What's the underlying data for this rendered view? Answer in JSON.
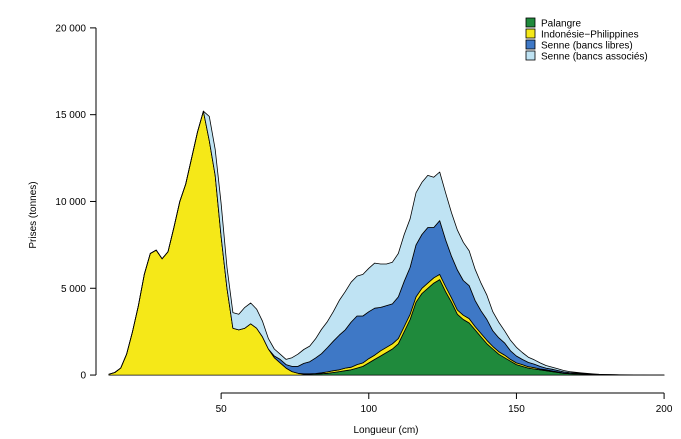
{
  "chart_data": {
    "type": "area",
    "stacked": true,
    "xlabel": "Longueur (cm)",
    "ylabel": "Prises (tonnes)",
    "xlim": [
      10,
      202
    ],
    "ylim": [
      -400,
      20800
    ],
    "x_ticks": [
      50,
      100,
      150,
      200
    ],
    "y_ticks": [
      0,
      5000,
      10000,
      15000,
      20000
    ],
    "y_tick_labels": [
      "0",
      "5 000",
      "10 000",
      "15 000",
      "20 000"
    ],
    "grid": false,
    "legend_position": "top-right",
    "x": [
      12,
      14,
      16,
      18,
      20,
      22,
      24,
      26,
      28,
      30,
      32,
      34,
      36,
      38,
      40,
      42,
      44,
      46,
      48,
      50,
      52,
      54,
      56,
      58,
      60,
      62,
      64,
      66,
      68,
      70,
      72,
      74,
      76,
      78,
      80,
      82,
      84,
      86,
      88,
      90,
      92,
      94,
      96,
      98,
      100,
      102,
      104,
      106,
      108,
      110,
      112,
      114,
      116,
      118,
      120,
      122,
      124,
      126,
      128,
      130,
      132,
      134,
      136,
      138,
      140,
      142,
      144,
      146,
      148,
      150,
      152,
      154,
      156,
      158,
      160,
      162,
      164,
      166,
      168,
      170,
      172,
      174,
      176,
      178,
      180,
      185,
      190,
      195,
      200
    ],
    "series": [
      {
        "name": "Palangre",
        "color": "#1f8a3c",
        "values": [
          0,
          0,
          0,
          0,
          0,
          0,
          0,
          0,
          0,
          0,
          0,
          0,
          0,
          0,
          0,
          0,
          0,
          0,
          0,
          0,
          0,
          0,
          0,
          0,
          0,
          0,
          0,
          0,
          0,
          0,
          0,
          0,
          0,
          20,
          40,
          60,
          80,
          100,
          150,
          200,
          250,
          300,
          400,
          500,
          700,
          900,
          1100,
          1300,
          1500,
          1800,
          2500,
          3200,
          4200,
          4700,
          5000,
          5300,
          5500,
          4800,
          4200,
          3500,
          3200,
          3000,
          2600,
          2200,
          1800,
          1500,
          1200,
          1000,
          800,
          600,
          500,
          400,
          350,
          300,
          250,
          200,
          150,
          100,
          80,
          60,
          50,
          40,
          30,
          20,
          15,
          10,
          5,
          0,
          0
        ]
      },
      {
        "name": "Indonésie–Philippines",
        "color": "#f5e818",
        "values": [
          50,
          150,
          400,
          1200,
          2500,
          4000,
          5800,
          7000,
          7200,
          6700,
          7100,
          8500,
          10000,
          11000,
          12500,
          14000,
          15200,
          13500,
          11500,
          8000,
          5000,
          2700,
          2600,
          2700,
          2950,
          2700,
          2200,
          1500,
          1000,
          700,
          400,
          200,
          100,
          50,
          30,
          30,
          50,
          80,
          100,
          100,
          150,
          150,
          200,
          200,
          250,
          250,
          300,
          300,
          300,
          300,
          300,
          300,
          300,
          300,
          300,
          300,
          300,
          300,
          250,
          250,
          250,
          250,
          200,
          200,
          200,
          150,
          150,
          150,
          100,
          100,
          100,
          80,
          80,
          50,
          50,
          40,
          30,
          20,
          10,
          10,
          5,
          5,
          5,
          0,
          0,
          0,
          0,
          0,
          0
        ]
      },
      {
        "name": "Senne (bancs libres)",
        "color": "#3e78c6",
        "values": [
          0,
          0,
          0,
          0,
          0,
          0,
          0,
          0,
          0,
          0,
          0,
          0,
          0,
          0,
          0,
          0,
          0,
          0,
          0,
          0,
          0,
          0,
          0,
          0,
          0,
          0,
          0,
          0,
          100,
          200,
          200,
          300,
          400,
          600,
          700,
          900,
          1100,
          1400,
          1700,
          2000,
          2200,
          2600,
          2800,
          2700,
          2700,
          2700,
          2500,
          2400,
          2300,
          2400,
          2600,
          2700,
          3000,
          3100,
          3200,
          2900,
          3100,
          2700,
          2400,
          2300,
          2000,
          1900,
          1500,
          1300,
          1200,
          900,
          800,
          700,
          500,
          400,
          300,
          250,
          200,
          150,
          100,
          100,
          80,
          60,
          50,
          40,
          30,
          20,
          10,
          10,
          5,
          0,
          0,
          0,
          0
        ]
      },
      {
        "name": "Senne (bancs associés)",
        "color": "#bfe3f3",
        "values": [
          0,
          0,
          0,
          0,
          0,
          0,
          0,
          0,
          0,
          0,
          0,
          0,
          0,
          0,
          0,
          0,
          0,
          1400,
          1500,
          1900,
          1200,
          900,
          900,
          1200,
          1200,
          1100,
          900,
          600,
          400,
          300,
          300,
          500,
          700,
          800,
          900,
          1100,
          1400,
          1500,
          1700,
          2000,
          2200,
          2300,
          2300,
          2400,
          2500,
          2600,
          2500,
          2400,
          2400,
          2500,
          2700,
          2800,
          3000,
          3000,
          3000,
          2900,
          2800,
          2700,
          2500,
          2300,
          2200,
          2000,
          1800,
          1600,
          1400,
          1100,
          900,
          700,
          600,
          500,
          400,
          300,
          250,
          200,
          150,
          120,
          100,
          80,
          60,
          50,
          40,
          30,
          20,
          15,
          10,
          5,
          5,
          0,
          0
        ]
      }
    ],
    "legend": [
      {
        "label": "Palangre",
        "color": "#1f8a3c"
      },
      {
        "label": "Indonésie−Philippines",
        "color": "#f5e818"
      },
      {
        "label": "Senne (bancs libres)",
        "color": "#3e78c6"
      },
      {
        "label": "Senne (bancs associés)",
        "color": "#bfe3f3"
      }
    ]
  }
}
